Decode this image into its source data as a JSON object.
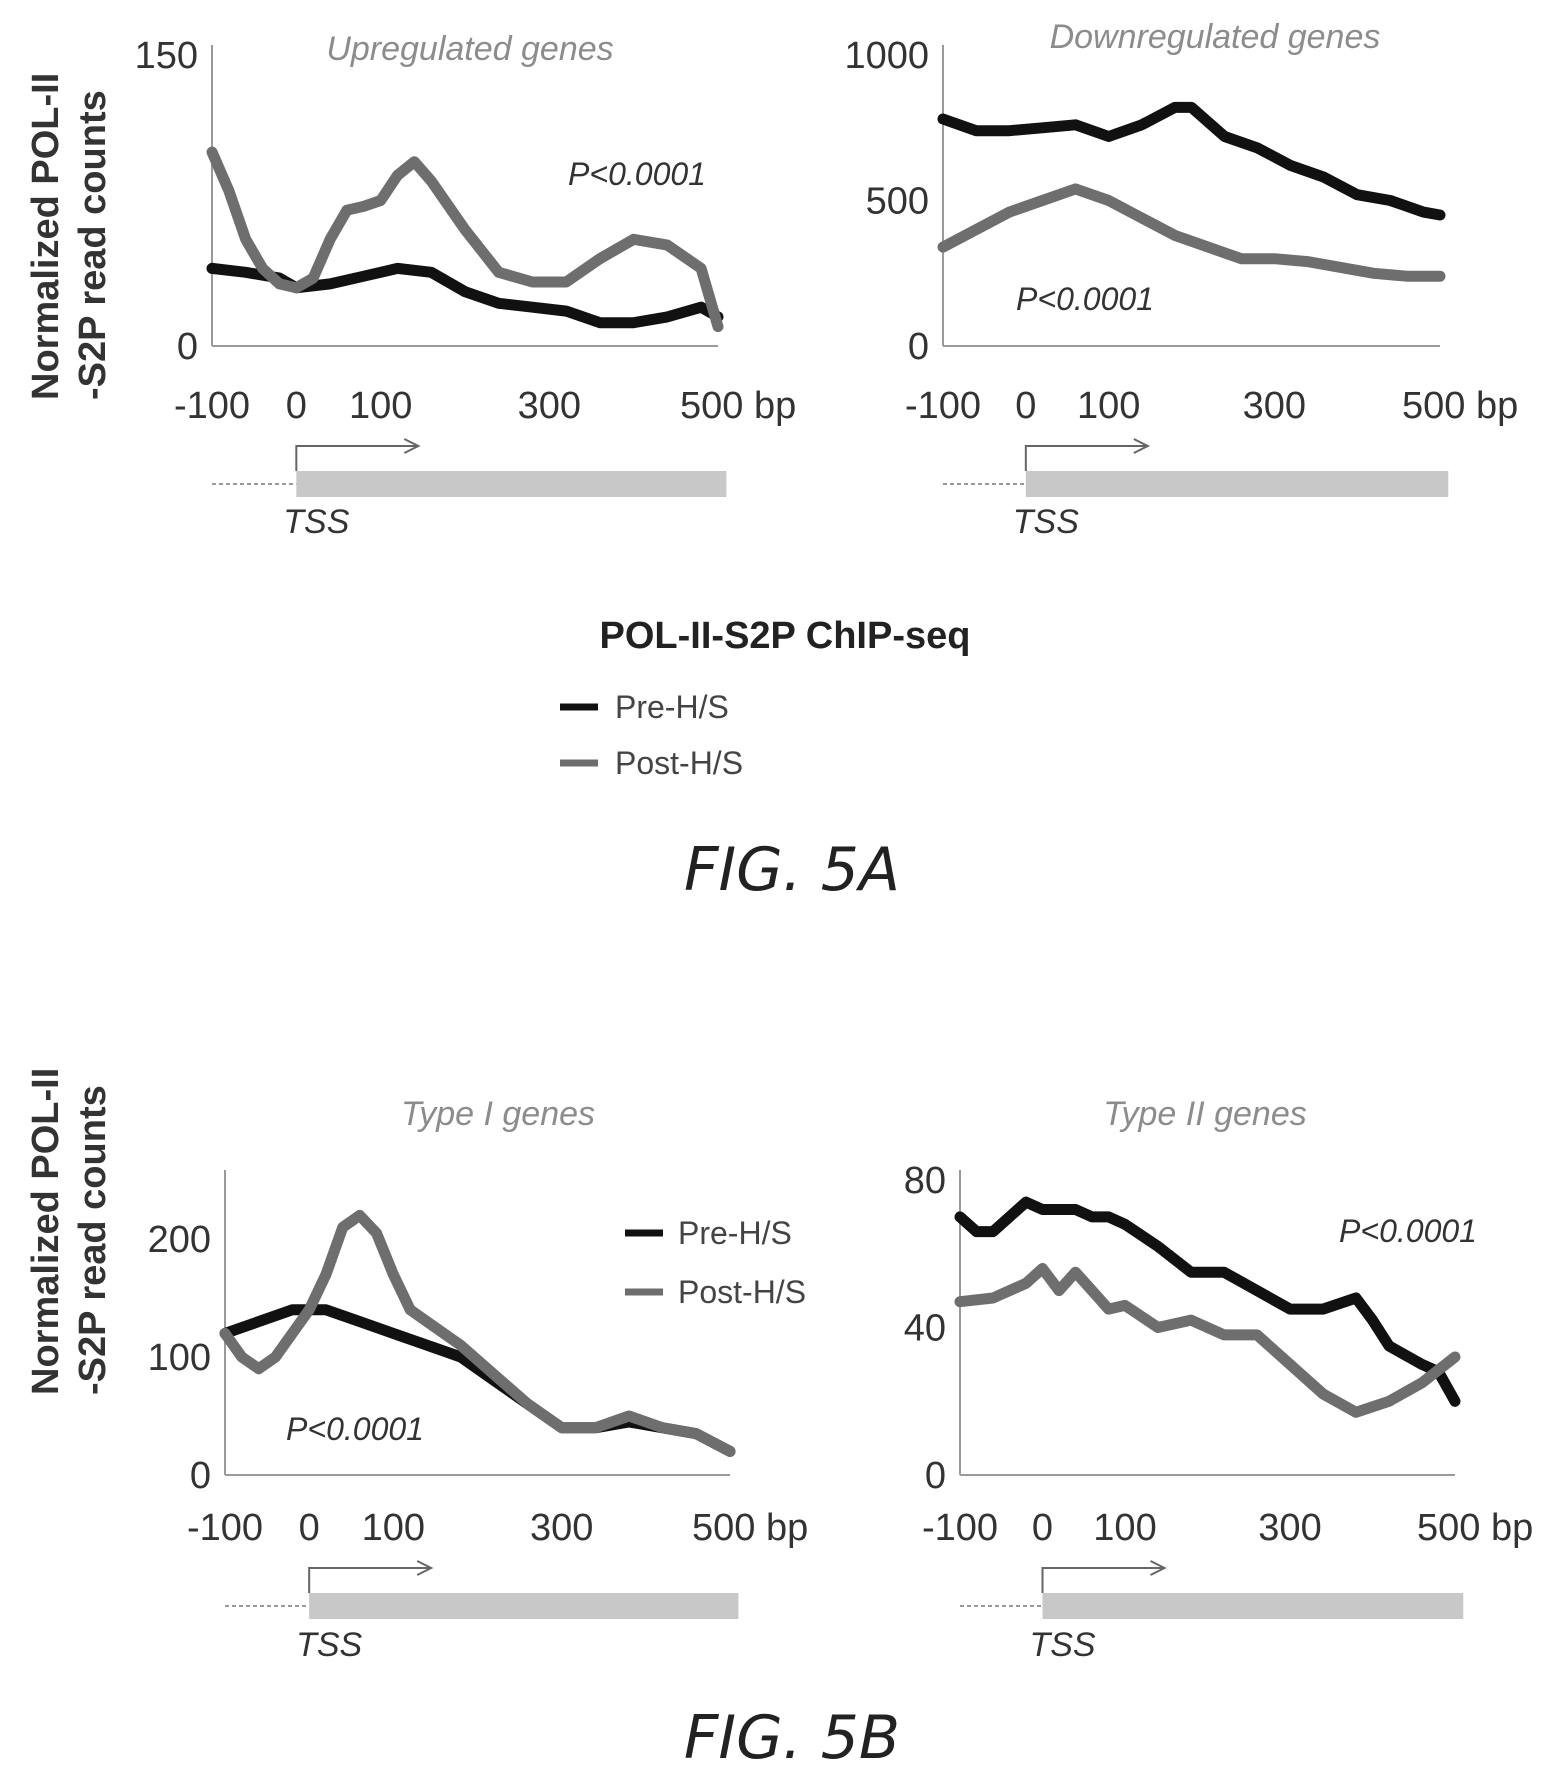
{
  "figure_a_label": "FIG. 5A",
  "figure_b_label": "FIG. 5B",
  "chip_title": "POL-II-S2P ChIP-seq",
  "ylabel_line1": "Normalized POL-II",
  "ylabel_line2": "-S2P read counts",
  "legend": {
    "pre": "Pre-H/S",
    "post": "Post-H/S"
  },
  "colors": {
    "pre": "#111111",
    "post": "#6e6e6e",
    "axis": "#9a9a9a",
    "gene_box": "#c8c8c8"
  },
  "x_axis_labels": {
    "tick_m100": "-100",
    "tick_0": "0",
    "tick_100": "100",
    "tick_300": "300",
    "tick_500": "500 bp"
  },
  "chart_data": [
    {
      "type": "line",
      "title": "Upregulated genes",
      "pvalue": "P<0.0001",
      "tss_label": "TSS",
      "xlim": [
        -100,
        500
      ],
      "ylim": [
        0,
        150
      ],
      "yticks": [
        "150",
        "0"
      ],
      "xticks": [
        "-100",
        "0",
        "100",
        "300",
        "500 bp"
      ],
      "series": [
        {
          "name": "Pre-H/S",
          "x": [
            -100,
            -60,
            -20,
            0,
            40,
            80,
            120,
            160,
            200,
            240,
            280,
            320,
            360,
            400,
            440,
            480,
            500
          ],
          "values": [
            40,
            38,
            35,
            30,
            32,
            36,
            40,
            38,
            28,
            22,
            20,
            18,
            12,
            12,
            15,
            20,
            15
          ]
        },
        {
          "name": "Post-H/S",
          "x": [
            -100,
            -80,
            -60,
            -40,
            -20,
            0,
            20,
            40,
            60,
            80,
            100,
            120,
            140,
            160,
            200,
            240,
            280,
            320,
            360,
            400,
            440,
            480,
            500
          ],
          "values": [
            100,
            80,
            55,
            40,
            32,
            30,
            35,
            55,
            70,
            72,
            75,
            88,
            95,
            85,
            60,
            38,
            33,
            33,
            45,
            55,
            52,
            40,
            10
          ]
        }
      ]
    },
    {
      "type": "line",
      "title": "Downregulated genes",
      "pvalue": "P<0.0001",
      "tss_label": "TSS",
      "xlim": [
        -100,
        500
      ],
      "ylim": [
        0,
        1000
      ],
      "yticks": [
        "1000",
        "500",
        "0"
      ],
      "xticks": [
        "-100",
        "0",
        "100",
        "300",
        "500 bp"
      ],
      "series": [
        {
          "name": "Pre-H/S",
          "x": [
            -100,
            -60,
            -20,
            20,
            60,
            100,
            140,
            180,
            200,
            240,
            280,
            320,
            360,
            400,
            440,
            480,
            500
          ],
          "values": [
            780,
            740,
            740,
            750,
            760,
            720,
            760,
            820,
            820,
            720,
            680,
            620,
            580,
            520,
            500,
            460,
            450
          ]
        },
        {
          "name": "Post-H/S",
          "x": [
            -100,
            -60,
            -20,
            20,
            60,
            100,
            140,
            180,
            220,
            260,
            300,
            340,
            380,
            420,
            460,
            500
          ],
          "values": [
            340,
            400,
            460,
            500,
            540,
            500,
            440,
            380,
            340,
            300,
            300,
            290,
            270,
            250,
            240,
            240
          ]
        }
      ]
    },
    {
      "type": "line",
      "title": "Type I genes",
      "pvalue": "P<0.0001",
      "tss_label": "TSS",
      "xlim": [
        -100,
        500
      ],
      "ylim": [
        0,
        250
      ],
      "yticks": [
        "200",
        "100",
        "0"
      ],
      "xticks": [
        "-100",
        "0",
        "100",
        "300",
        "500 bp"
      ],
      "series": [
        {
          "name": "Pre-H/S",
          "x": [
            -100,
            -60,
            -20,
            20,
            60,
            100,
            140,
            180,
            220,
            260,
            300,
            340,
            380,
            420,
            460,
            500
          ],
          "values": [
            120,
            130,
            140,
            140,
            130,
            120,
            110,
            100,
            80,
            60,
            40,
            40,
            45,
            40,
            35,
            20
          ]
        },
        {
          "name": "Post-H/S",
          "x": [
            -100,
            -80,
            -60,
            -40,
            -20,
            0,
            20,
            40,
            60,
            80,
            100,
            120,
            140,
            180,
            220,
            260,
            300,
            340,
            380,
            420,
            460,
            500
          ],
          "values": [
            120,
            100,
            90,
            100,
            120,
            140,
            170,
            210,
            220,
            205,
            170,
            140,
            130,
            110,
            85,
            60,
            40,
            40,
            50,
            40,
            35,
            20
          ]
        }
      ]
    },
    {
      "type": "line",
      "title": "Type II genes",
      "pvalue": "P<0.0001",
      "tss_label": "TSS",
      "xlim": [
        -100,
        500
      ],
      "ylim": [
        0,
        80
      ],
      "yticks": [
        "80",
        "40",
        "0"
      ],
      "xticks": [
        "-100",
        "0",
        "100",
        "300",
        "500 bp"
      ],
      "series": [
        {
          "name": "Pre-H/S",
          "x": [
            -100,
            -80,
            -60,
            -40,
            -20,
            0,
            20,
            40,
            60,
            80,
            100,
            140,
            180,
            220,
            260,
            300,
            340,
            380,
            400,
            420,
            460,
            480,
            500
          ],
          "values": [
            70,
            66,
            66,
            70,
            74,
            72,
            72,
            72,
            70,
            70,
            68,
            62,
            55,
            55,
            50,
            45,
            45,
            48,
            42,
            35,
            30,
            28,
            20
          ]
        },
        {
          "name": "Post-H/S",
          "x": [
            -100,
            -60,
            -20,
            0,
            20,
            40,
            60,
            80,
            100,
            140,
            180,
            220,
            260,
            300,
            340,
            380,
            420,
            460,
            500
          ],
          "values": [
            47,
            48,
            52,
            56,
            50,
            55,
            50,
            45,
            46,
            40,
            42,
            38,
            38,
            30,
            22,
            17,
            20,
            25,
            32
          ]
        }
      ]
    }
  ]
}
